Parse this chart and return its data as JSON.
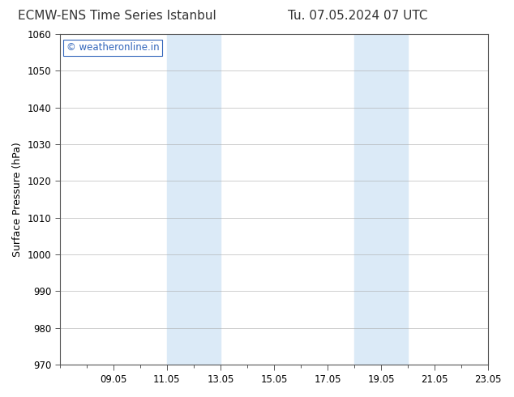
{
  "title_left": "ECMW-ENS Time Series Istanbul",
  "title_right": "Tu. 07.05.2024 07 UTC",
  "ylabel": "Surface Pressure (hPa)",
  "ylim": [
    970,
    1060
  ],
  "yticks": [
    970,
    980,
    990,
    1000,
    1010,
    1020,
    1030,
    1040,
    1050,
    1060
  ],
  "x_min": 0,
  "x_max": 16,
  "xtick_labels": [
    "09.05",
    "11.05",
    "13.05",
    "15.05",
    "17.05",
    "19.05",
    "21.05",
    "23.05"
  ],
  "xtick_positions": [
    2,
    4,
    6,
    8,
    10,
    12,
    14,
    16
  ],
  "shaded_bands": [
    {
      "x_start": 4,
      "x_end": 6
    },
    {
      "x_start": 11,
      "x_end": 13
    }
  ],
  "shaded_color": "#dbeaf7",
  "background_color": "#ffffff",
  "plot_bg_color": "#ffffff",
  "watermark_text": "© weatheronline.in",
  "watermark_color": "#3366bb",
  "title_fontsize": 11,
  "axis_label_fontsize": 9,
  "tick_fontsize": 8.5,
  "watermark_fontsize": 8.5,
  "grid_color": "#aaaaaa",
  "spine_color": "#555555",
  "title_color": "#333333"
}
